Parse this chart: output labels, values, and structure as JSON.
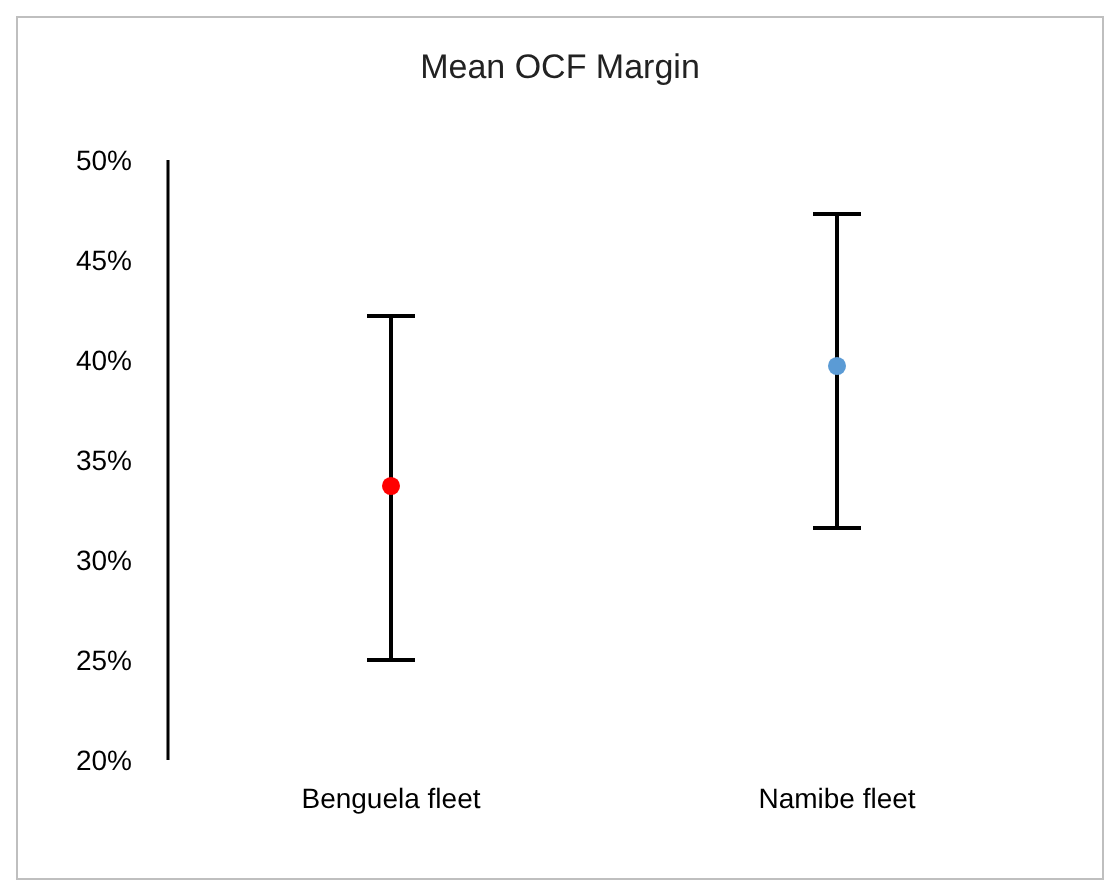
{
  "chart_data": {
    "type": "scatter",
    "title": "Mean OCF Margin",
    "categories": [
      "Benguela fleet",
      "Namibe fleet"
    ],
    "values": [
      33.7,
      39.7
    ],
    "colors": [
      "#ff0000",
      "#5b9bd5"
    ],
    "errors": [
      [
        25.0,
        42.2
      ],
      [
        31.6,
        47.3
      ]
    ],
    "ylim": [
      20,
      50
    ],
    "yticks": [
      {
        "value": 20,
        "label": "20%"
      },
      {
        "value": 25,
        "label": "25%"
      },
      {
        "value": 30,
        "label": "30%"
      },
      {
        "value": 35,
        "label": "35%"
      },
      {
        "value": 40,
        "label": "40%"
      },
      {
        "value": 45,
        "label": "45%"
      },
      {
        "value": 50,
        "label": "50%"
      }
    ],
    "grid": false,
    "legend": false,
    "marker": "circle"
  }
}
